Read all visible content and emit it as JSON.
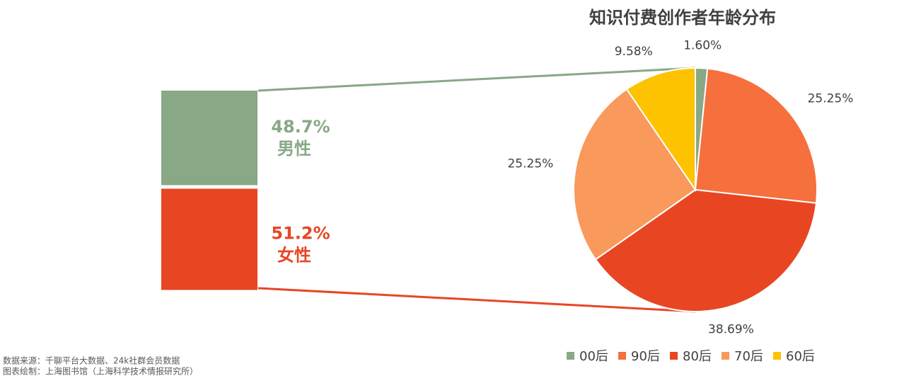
{
  "chart_data": [
    {
      "type": "stackedbar",
      "categories": [
        "男性",
        "女性"
      ],
      "values": [
        48.7,
        51.2
      ],
      "value_labels": [
        "48.7%",
        "51.2%"
      ],
      "colors": [
        "#88a886",
        "#e84623"
      ]
    },
    {
      "type": "pie",
      "title": "知识付费创作者年龄分布",
      "categories": [
        "00后",
        "90后",
        "80后",
        "70后",
        "60后"
      ],
      "values": [
        1.6,
        25.25,
        38.69,
        25.25,
        9.58
      ],
      "value_labels": [
        "1.60%",
        "25.25%",
        "38.69%",
        "25.25%",
        "9.58%"
      ],
      "colors": [
        "#88a886",
        "#f5703c",
        "#e84623",
        "#f9995b",
        "#fdc300"
      ],
      "legend": "bottom"
    }
  ],
  "footnotes": [
    "数据来源：千聊平台大数据、24k社群会员数据",
    "图表绘制：上海图书馆（上海科学技术情报研究所）"
  ]
}
